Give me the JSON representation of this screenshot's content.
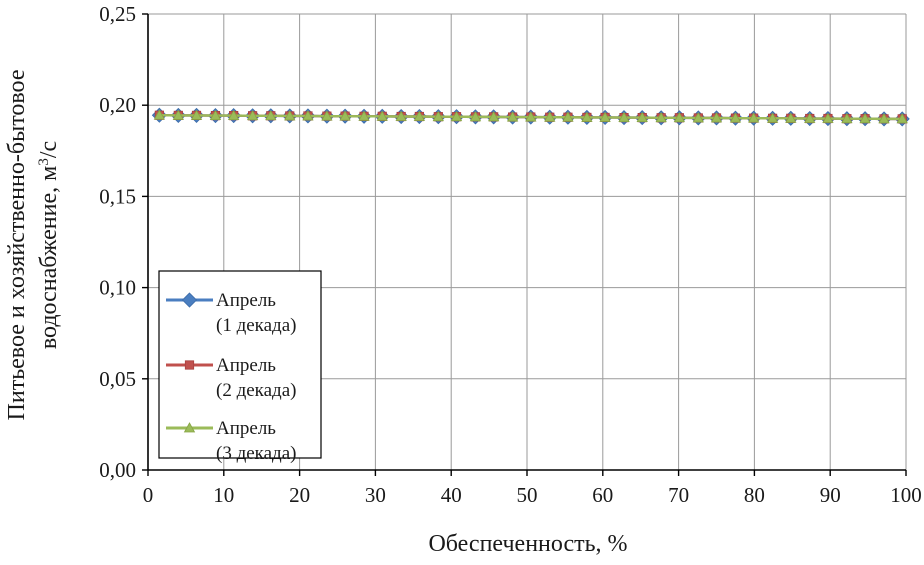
{
  "chart_data": {
    "type": "line",
    "xlabel": "Обеспеченность, %",
    "ylabel_line1": "Питьевое и хозяйственно-бытовое",
    "ylabel_line2_prefix": "водоснабжение, м",
    "ylabel_line2_sup": "3",
    "ylabel_line2_suffix": "/с",
    "xlim": [
      0,
      100
    ],
    "ylim": [
      0,
      0.25
    ],
    "xticks": [
      0,
      10,
      20,
      30,
      40,
      50,
      60,
      70,
      80,
      90,
      100
    ],
    "xtick_labels": [
      "0",
      "10",
      "20",
      "30",
      "40",
      "50",
      "60",
      "70",
      "80",
      "90",
      "100"
    ],
    "yticks": [
      0,
      0.05,
      0.1,
      0.15,
      0.2,
      0.25
    ],
    "ytick_labels": [
      "0,00",
      "0,05",
      "0,10",
      "0,15",
      "0,20",
      "0,25"
    ],
    "grid": true,
    "legend_placement": "left-bottom",
    "x": [
      1.5,
      4.0,
      6.4,
      8.9,
      11.3,
      13.8,
      16.2,
      18.7,
      21.1,
      23.6,
      26.0,
      28.5,
      30.9,
      33.4,
      35.8,
      38.3,
      40.7,
      43.2,
      45.6,
      48.1,
      50.5,
      53.0,
      55.4,
      57.9,
      60.3,
      62.8,
      65.2,
      67.7,
      70.1,
      72.6,
      75.0,
      77.5,
      79.9,
      82.4,
      84.8,
      87.3,
      89.7,
      92.2,
      94.6,
      97.1,
      99.5
    ],
    "series": [
      {
        "name_line1": "Апрель",
        "name_line2": "(1 декада)",
        "marker": "diamond",
        "color": "#4a7ec0",
        "marker_edge": "#3a6aa8",
        "values": [
          0.1945,
          0.1944,
          0.1944,
          0.1943,
          0.1943,
          0.1942,
          0.1942,
          0.1941,
          0.1941,
          0.194,
          0.194,
          0.1939,
          0.1939,
          0.1938,
          0.1938,
          0.1937,
          0.1937,
          0.1936,
          0.1936,
          0.1935,
          0.1935,
          0.1934,
          0.1934,
          0.1933,
          0.1933,
          0.1932,
          0.1932,
          0.1931,
          0.1931,
          0.193,
          0.193,
          0.1929,
          0.1929,
          0.1928,
          0.1928,
          0.1927,
          0.1927,
          0.1926,
          0.1926,
          0.1925,
          0.1925
        ]
      },
      {
        "name_line1": "Апрель",
        "name_line2": "(2 декада)",
        "marker": "square",
        "color": "#c0504d",
        "marker_edge": "#a8403d",
        "values": [
          0.1945,
          0.1944,
          0.1944,
          0.1943,
          0.1943,
          0.1942,
          0.1942,
          0.1941,
          0.1941,
          0.194,
          0.194,
          0.1939,
          0.1939,
          0.1938,
          0.1938,
          0.1937,
          0.1937,
          0.1936,
          0.1936,
          0.1935,
          0.1935,
          0.1934,
          0.1934,
          0.1933,
          0.1933,
          0.1932,
          0.1932,
          0.1931,
          0.1931,
          0.193,
          0.193,
          0.1929,
          0.1929,
          0.1928,
          0.1928,
          0.1927,
          0.1927,
          0.1926,
          0.1926,
          0.1925,
          0.1925
        ]
      },
      {
        "name_line1": "Апрель",
        "name_line2": "(3 декада)",
        "marker": "triangle",
        "color": "#9bbb59",
        "marker_edge": "#86a544",
        "values": [
          0.1945,
          0.1944,
          0.1944,
          0.1943,
          0.1943,
          0.1942,
          0.1942,
          0.1941,
          0.1941,
          0.194,
          0.194,
          0.1939,
          0.1939,
          0.1938,
          0.1938,
          0.1937,
          0.1937,
          0.1936,
          0.1936,
          0.1935,
          0.1935,
          0.1934,
          0.1934,
          0.1933,
          0.1933,
          0.1932,
          0.1932,
          0.1931,
          0.1931,
          0.193,
          0.193,
          0.1929,
          0.1929,
          0.1928,
          0.1928,
          0.1927,
          0.1927,
          0.1926,
          0.1926,
          0.1925,
          0.1925
        ]
      }
    ]
  }
}
